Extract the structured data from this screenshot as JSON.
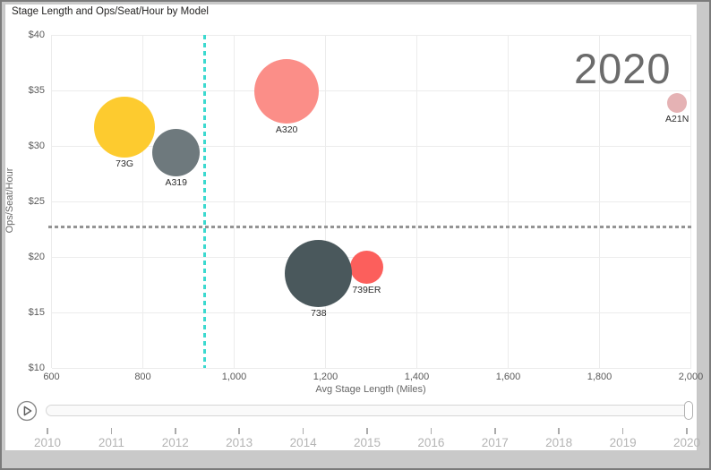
{
  "window": {
    "background": "#c9c9c9",
    "frame_border": "#7b7b7b",
    "card_background": "#ffffff",
    "card_border": "#c6c6c6"
  },
  "title": "Stage Length and Ops/Seat/Hour by Model",
  "watermark_year": "2020",
  "chart_data": {
    "type": "scatter",
    "title": "Stage Length and Ops/Seat/Hour by Model",
    "xlabel": "Avg Stage Length (Miles)",
    "ylabel": "Ops/Seat/Hour",
    "xlim": [
      600,
      2000
    ],
    "ylim": [
      10,
      40
    ],
    "grid": true,
    "x_ticks": [
      {
        "value": 600,
        "label": "600"
      },
      {
        "value": 800,
        "label": "800"
      },
      {
        "value": 1000,
        "label": "1,000"
      },
      {
        "value": 1200,
        "label": "1,200"
      },
      {
        "value": 1400,
        "label": "1,400"
      },
      {
        "value": 1600,
        "label": "1,600"
      },
      {
        "value": 1800,
        "label": "1,800"
      },
      {
        "value": 2000,
        "label": "2,000"
      }
    ],
    "y_ticks": [
      {
        "value": 10,
        "label": "$10"
      },
      {
        "value": 15,
        "label": "$15"
      },
      {
        "value": 20,
        "label": "$20"
      },
      {
        "value": 25,
        "label": "$25"
      },
      {
        "value": 30,
        "label": "$30"
      },
      {
        "value": 35,
        "label": "$35"
      },
      {
        "value": 40,
        "label": "$40"
      }
    ],
    "points": [
      {
        "model": "73G",
        "x": 760,
        "y": 31.7,
        "radius_px": 34,
        "color": "#FDCB2F",
        "z": 1
      },
      {
        "model": "A319",
        "x": 873,
        "y": 29.4,
        "radius_px": 26.5,
        "color": "#6E797D",
        "z": 2
      },
      {
        "model": "A320",
        "x": 1115,
        "y": 34.9,
        "radius_px": 36,
        "color": "#FB8E88",
        "z": 1
      },
      {
        "model": "A21N",
        "x": 1970,
        "y": 33.9,
        "radius_px": 11,
        "color": "#E5B2B4",
        "z": 1
      },
      {
        "model": "739ER",
        "x": 1290,
        "y": 19.1,
        "radius_px": 18.5,
        "color": "#FC5F5C",
        "z": 1
      },
      {
        "model": "738",
        "x": 1185,
        "y": 18.5,
        "radius_px": 37.5,
        "color": "#4A585C",
        "z": 2
      }
    ],
    "reference_lines": [
      {
        "axis": "x",
        "value": 935,
        "style": "dotted",
        "color": "#3CD9CF"
      },
      {
        "axis": "y",
        "value": 22.7,
        "style": "dashed",
        "color": "#949494"
      }
    ]
  },
  "play_axis": {
    "play_icon": "play-icon",
    "years": [
      "2010",
      "2011",
      "2012",
      "2013",
      "2014",
      "2015",
      "2016",
      "2017",
      "2018",
      "2019",
      "2020"
    ],
    "current_year": "2020"
  }
}
